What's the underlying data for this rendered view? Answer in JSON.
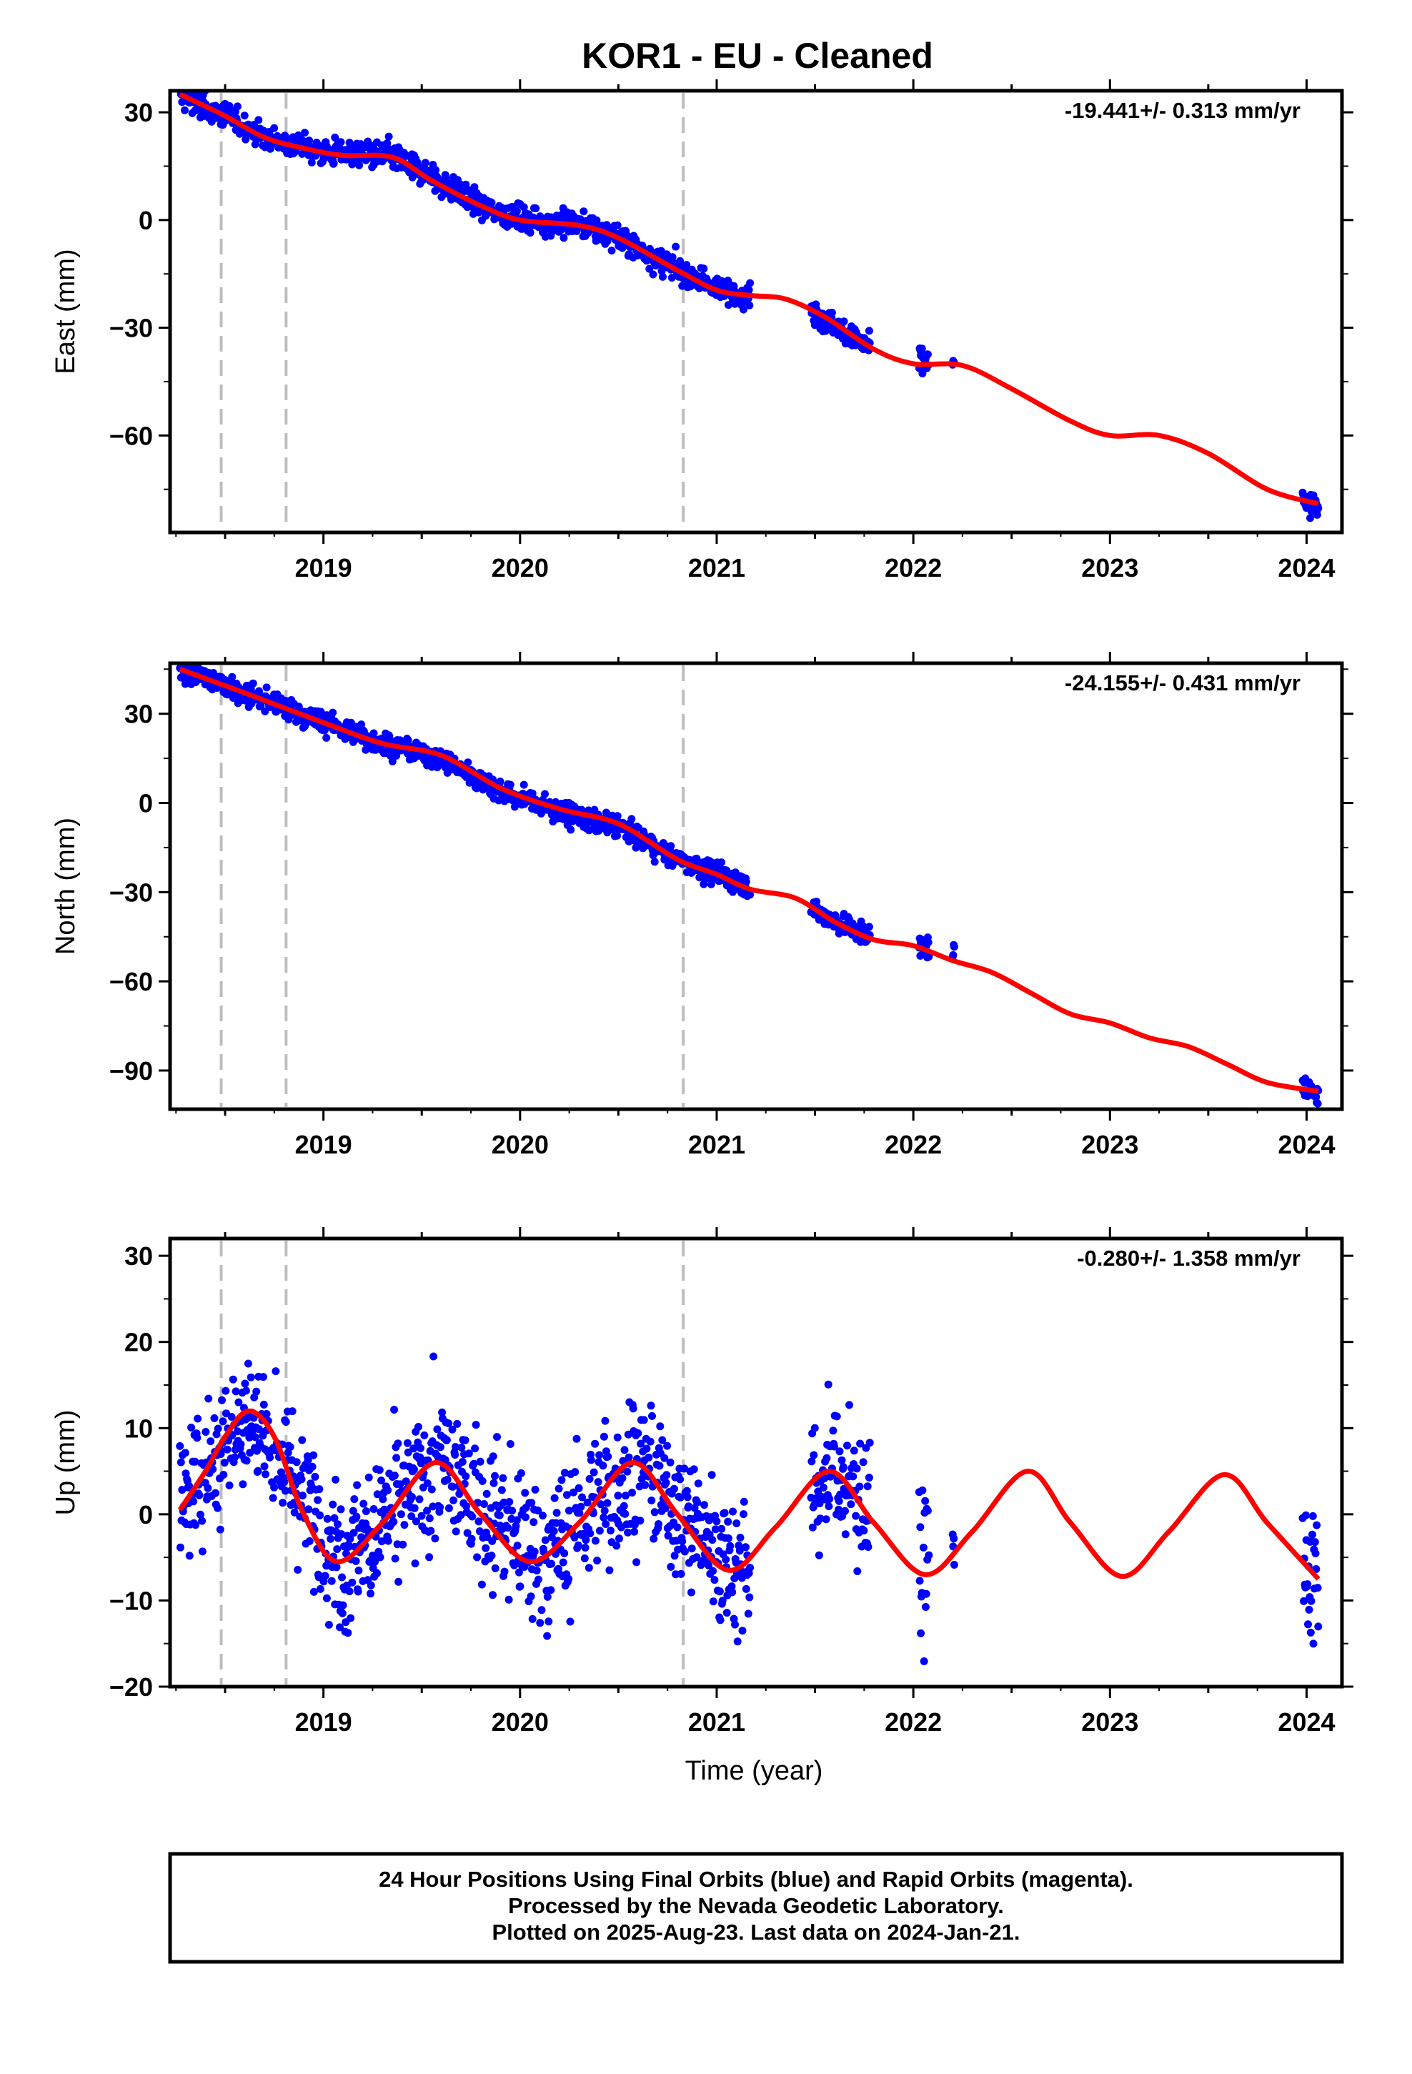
{
  "title": "KOR1  - EU - Cleaned",
  "xlabel": "Time (year)",
  "footer": {
    "line1": "24 Hour Positions Using Final Orbits (blue) and Rapid Orbits (magenta).",
    "line2": "Processed by the Nevada Geodetic Laboratory.",
    "line3": "Plotted on 2025-Aug-23. Last data on 2024-Jan-21."
  },
  "colors": {
    "data": "#0000ff",
    "model": "#ff0000",
    "event": "#bdbdbd",
    "axis": "#000000"
  },
  "chart_data": [
    {
      "type": "scatter",
      "component": "East",
      "ylabel": "East (mm)",
      "rate_label": "-19.441+/- 0.313 mm/yr",
      "xlim": [
        2018.22,
        2024.18
      ],
      "ylim": [
        -87,
        36
      ],
      "yticks": [
        "30",
        "0",
        "−30",
        "−60"
      ],
      "ytick_values": [
        30,
        0,
        -30,
        -60
      ],
      "xticks": [
        "2019",
        "2020",
        "2021",
        "2022",
        "2023",
        "2024"
      ],
      "xtick_values": [
        2019,
        2020,
        2021,
        2022,
        2023,
        2024
      ],
      "event_lines": [
        2018.48,
        2018.81,
        2020.83
      ],
      "series": [
        {
          "role": "daily positions",
          "segments": [
            [
              2018.27,
              2021.17
            ],
            [
              2021.48,
              2021.78
            ],
            [
              2022.03,
              2022.08
            ],
            [
              2022.2,
              2022.21
            ],
            [
              2023.98,
              2024.06
            ]
          ],
          "trend": [
            [
              2018.27,
              35
            ],
            [
              2018.5,
              29
            ],
            [
              2018.7,
              23
            ],
            [
              2019.0,
              19
            ],
            [
              2019.35,
              18
            ],
            [
              2019.55,
              12
            ],
            [
              2019.8,
              4
            ],
            [
              2020.0,
              0
            ],
            [
              2020.3,
              -1
            ],
            [
              2020.5,
              -5
            ],
            [
              2020.8,
              -14
            ],
            [
              2021.0,
              -19
            ],
            [
              2021.17,
              -21
            ],
            [
              2021.48,
              -25
            ],
            [
              2021.78,
              -36
            ],
            [
              2022.05,
              -39
            ],
            [
              2022.2,
              -40
            ],
            [
              2024.0,
              -79
            ],
            [
              2024.06,
              -80
            ]
          ],
          "scatter_mm": 1.8
        },
        {
          "role": "model fit",
          "x": [
            2018.27,
            2018.5,
            2018.7,
            2018.9,
            2019.1,
            2019.35,
            2019.55,
            2019.8,
            2020.0,
            2020.3,
            2020.5,
            2020.8,
            2021.0,
            2021.17,
            2021.35,
            2021.55,
            2021.8,
            2022.0,
            2022.25,
            2022.5,
            2022.8,
            2023.0,
            2023.25,
            2023.5,
            2023.8,
            2024.06
          ],
          "y": [
            35,
            29,
            23,
            20,
            18,
            17.5,
            11,
            4,
            0,
            -1.5,
            -5,
            -14,
            -19.5,
            -21,
            -22,
            -27,
            -36,
            -40,
            -40.5,
            -47,
            -56,
            -60,
            -60,
            -65,
            -75,
            -79
          ]
        }
      ]
    },
    {
      "type": "scatter",
      "component": "North",
      "ylabel": "North (mm)",
      "rate_label": "-24.155+/- 0.431 mm/yr",
      "xlim": [
        2018.22,
        2024.18
      ],
      "ylim": [
        -103,
        47
      ],
      "yticks": [
        "30",
        "0",
        "−30",
        "−60",
        "−90"
      ],
      "ytick_values": [
        30,
        0,
        -30,
        -60,
        -90
      ],
      "xticks": [
        "2019",
        "2020",
        "2021",
        "2022",
        "2023",
        "2024"
      ],
      "xtick_values": [
        2019,
        2020,
        2021,
        2022,
        2023,
        2024
      ],
      "event_lines": [
        2018.48,
        2018.81,
        2020.83
      ],
      "series": [
        {
          "role": "daily positions",
          "segments": [
            [
              2018.27,
              2021.17
            ],
            [
              2021.48,
              2021.78
            ],
            [
              2022.03,
              2022.08
            ],
            [
              2022.2,
              2022.21
            ],
            [
              2023.98,
              2024.06
            ]
          ],
          "trend": [
            [
              2018.27,
              45
            ],
            [
              2018.6,
              37
            ],
            [
              2019.0,
              27
            ],
            [
              2019.3,
              20
            ],
            [
              2019.6,
              15
            ],
            [
              2019.9,
              4
            ],
            [
              2020.2,
              -3
            ],
            [
              2020.5,
              -8
            ],
            [
              2020.8,
              -19
            ],
            [
              2021.0,
              -24
            ],
            [
              2021.17,
              -28
            ],
            [
              2021.48,
              -36
            ],
            [
              2021.78,
              -45
            ],
            [
              2022.05,
              -48
            ],
            [
              2022.2,
              -51
            ],
            [
              2024.0,
              -96
            ],
            [
              2024.06,
              -97
            ]
          ],
          "scatter_mm": 1.9
        },
        {
          "role": "model fit",
          "x": [
            2018.27,
            2018.6,
            2019.0,
            2019.3,
            2019.6,
            2019.9,
            2020.2,
            2020.5,
            2020.8,
            2021.0,
            2021.17,
            2021.4,
            2021.6,
            2021.8,
            2022.0,
            2022.2,
            2022.4,
            2022.6,
            2022.8,
            2023.0,
            2023.2,
            2023.4,
            2023.6,
            2023.8,
            2024.06
          ],
          "y": [
            45,
            37,
            27,
            20,
            16,
            5,
            -2,
            -7,
            -19,
            -24,
            -29,
            -32,
            -40,
            -46,
            -48,
            -53,
            -57,
            -64,
            -71,
            -74,
            -79,
            -82,
            -88,
            -94,
            -97
          ]
        }
      ]
    },
    {
      "type": "scatter",
      "component": "Up",
      "ylabel": "Up (mm)",
      "rate_label": "-0.280+/- 1.358 mm/yr",
      "xlim": [
        2018.22,
        2024.18
      ],
      "ylim": [
        -20,
        32
      ],
      "yticks": [
        "30",
        "20",
        "10",
        "0",
        "−10",
        "−20"
      ],
      "ytick_values": [
        30,
        20,
        10,
        0,
        -10,
        -20
      ],
      "xticks": [
        "2019",
        "2020",
        "2021",
        "2022",
        "2023",
        "2024"
      ],
      "xtick_values": [
        2019,
        2020,
        2021,
        2022,
        2023,
        2024
      ],
      "event_lines": [
        2018.48,
        2018.81,
        2020.83
      ],
      "series": [
        {
          "role": "daily positions",
          "segments": [
            [
              2018.27,
              2021.17
            ],
            [
              2021.48,
              2021.78
            ],
            [
              2022.03,
              2022.08
            ],
            [
              2022.2,
              2022.21
            ],
            [
              2023.98,
              2024.06
            ]
          ],
          "trend": [
            [
              2018.27,
              1
            ],
            [
              2018.6,
              12
            ],
            [
              2018.8,
              6
            ],
            [
              2019.1,
              -5.5
            ],
            [
              2019.6,
              6
            ],
            [
              2020.1,
              -5.5
            ],
            [
              2020.6,
              6
            ],
            [
              2021.1,
              -6.5
            ],
            [
              2021.6,
              5
            ],
            [
              2022.1,
              -7
            ],
            [
              2022.6,
              5
            ],
            [
              2023.1,
              -7
            ],
            [
              2023.6,
              4.5
            ],
            [
              2024.06,
              -7.5
            ]
          ],
          "scatter_mm": 4.2
        },
        {
          "role": "model fit",
          "x": [
            2018.27,
            2018.4,
            2018.5,
            2018.62,
            2018.75,
            2018.9,
            2019.07,
            2019.3,
            2019.57,
            2019.8,
            2020.05,
            2020.3,
            2020.57,
            2020.8,
            2021.06,
            2021.3,
            2021.57,
            2021.8,
            2022.06,
            2022.3,
            2022.58,
            2022.8,
            2023.06,
            2023.3,
            2023.58,
            2023.8,
            2024.06
          ],
          "y": [
            0.5,
            5,
            9,
            12,
            9,
            0,
            -5.5,
            -1,
            6,
            0,
            -5.5,
            -1,
            6,
            0,
            -6.5,
            -1.5,
            5,
            -1,
            -7,
            -2,
            5,
            -1,
            -7.2,
            -2,
            4.6,
            -1,
            -7.5
          ]
        }
      ]
    }
  ]
}
